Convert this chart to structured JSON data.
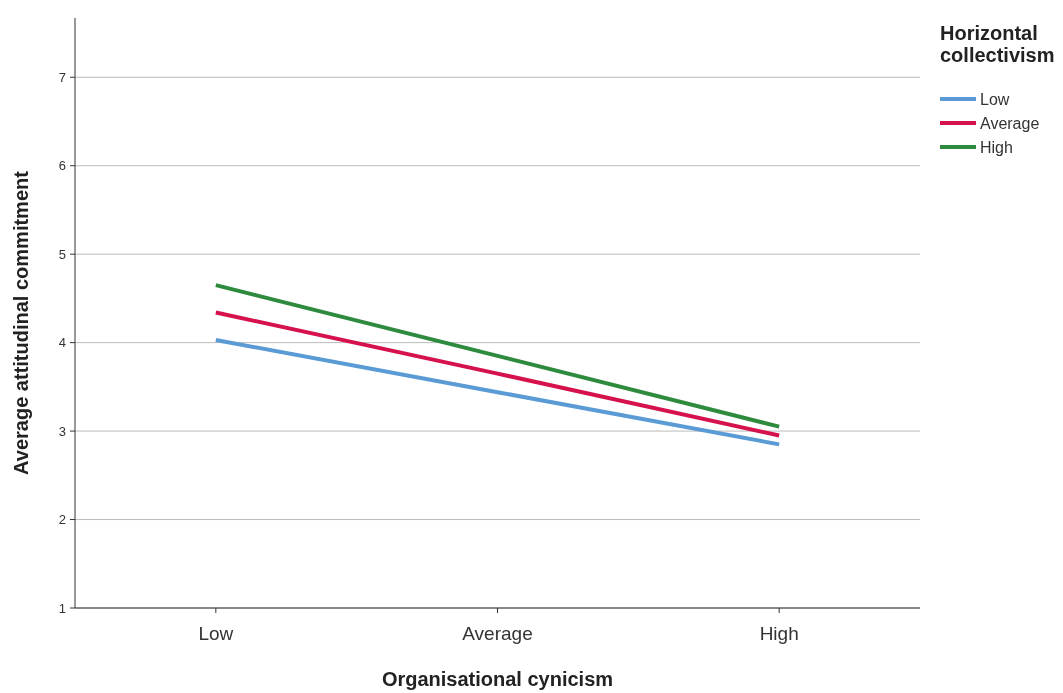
{
  "chart_data": {
    "type": "line",
    "xlabel": "Organisational cynicism",
    "ylabel": "Average attitudinal commitment",
    "legend_title": "Horizontal collectivism",
    "categories": [
      "Low",
      "Average",
      "High"
    ],
    "series": [
      {
        "name": "Low",
        "color": "#5b9bd5",
        "values": [
          4.03,
          3.44,
          2.85
        ]
      },
      {
        "name": "Average",
        "color": "#d5124c",
        "values": [
          4.34,
          3.65,
          2.95
        ]
      },
      {
        "name": "High",
        "color": "#2e8b3e",
        "values": [
          4.65,
          3.85,
          3.05
        ]
      }
    ],
    "ylim": [
      1,
      7.67
    ],
    "yticks": [
      1,
      2,
      3,
      4,
      5,
      6,
      7
    ],
    "grid": "y",
    "legend": "top right",
    "marker": "none",
    "line_style": "solid"
  }
}
